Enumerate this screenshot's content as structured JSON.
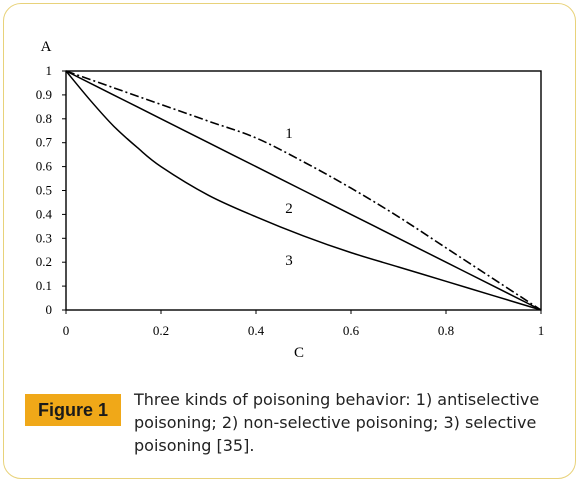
{
  "chart_data": {
    "type": "line",
    "xlabel": "C",
    "ylabel": "A",
    "xlim": [
      0,
      1
    ],
    "ylim": [
      0,
      1
    ],
    "x_ticks": [
      "0",
      "0.2",
      "0.4",
      "0.6",
      "0.8",
      "1"
    ],
    "y_ticks": [
      "0",
      "0.1",
      "0.2",
      "0.3",
      "0.4",
      "0.5",
      "0.6",
      "0.7",
      "0.8",
      "0.9",
      "1"
    ],
    "grid": false,
    "series": [
      {
        "name": "1",
        "style": "dash-dot",
        "x": [
          0,
          0.1,
          0.2,
          0.3,
          0.4,
          0.5,
          0.6,
          0.7,
          0.8,
          0.9,
          1
        ],
        "y": [
          1,
          0.93,
          0.86,
          0.79,
          0.72,
          0.62,
          0.51,
          0.39,
          0.26,
          0.13,
          0
        ]
      },
      {
        "name": "2",
        "style": "solid",
        "x": [
          0,
          0.1,
          0.2,
          0.3,
          0.4,
          0.5,
          0.6,
          0.7,
          0.8,
          0.9,
          1
        ],
        "y": [
          1,
          0.9,
          0.8,
          0.7,
          0.6,
          0.5,
          0.4,
          0.3,
          0.2,
          0.1,
          0
        ]
      },
      {
        "name": "3",
        "style": "solid",
        "x": [
          0,
          0.05,
          0.1,
          0.15,
          0.2,
          0.3,
          0.4,
          0.5,
          0.6,
          0.7,
          0.8,
          0.9,
          1
        ],
        "y": [
          1,
          0.88,
          0.77,
          0.68,
          0.6,
          0.48,
          0.39,
          0.31,
          0.24,
          0.18,
          0.12,
          0.06,
          0
        ]
      }
    ]
  },
  "caption": {
    "badge": "Figure 1",
    "text": "Three kinds of poisoning behavior: 1) antiselective poisoning; 2) non-selective poisoning; 3) selective poisoning [35]."
  }
}
